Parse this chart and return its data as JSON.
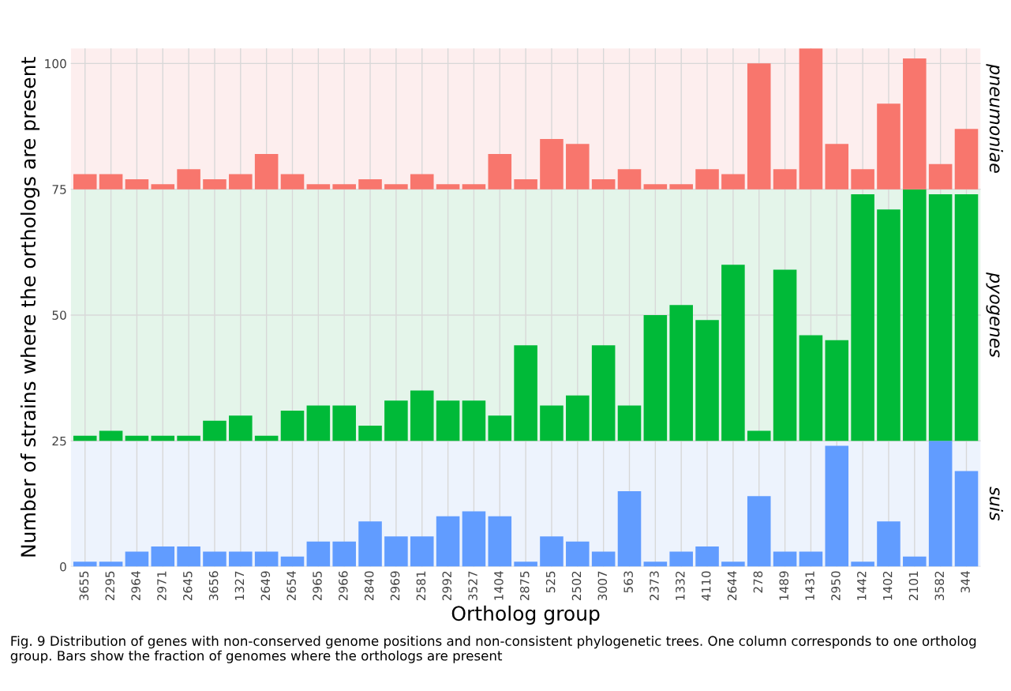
{
  "chart_data": {
    "type": "bar",
    "xlabel": "Ortholog group",
    "ylabel": "Number of strains where the orthologs are present",
    "categories": [
      "3655",
      "2295",
      "2964",
      "2971",
      "2645",
      "3656",
      "1327",
      "2649",
      "2654",
      "2965",
      "2966",
      "2840",
      "2969",
      "2581",
      "2992",
      "3527",
      "1404",
      "2875",
      "525",
      "2502",
      "3007",
      "563",
      "2373",
      "1332",
      "4110",
      "2644",
      "278",
      "1489",
      "1431",
      "2950",
      "1442",
      "1402",
      "2101",
      "3582",
      "344"
    ],
    "series": [
      {
        "color": "#619cff",
        "base": [
          0,
          0,
          0,
          0,
          0,
          0,
          0,
          0,
          0,
          0,
          0,
          0,
          0,
          0,
          0,
          0,
          0,
          0,
          0,
          0,
          0,
          0,
          0,
          0,
          0,
          0,
          0,
          0,
          0,
          0,
          0,
          0,
          0,
          0,
          0
        ],
        "values": [
          1,
          1,
          3,
          4,
          4,
          3,
          3,
          3,
          2,
          5,
          5,
          9,
          6,
          6,
          10,
          11,
          10,
          1,
          6,
          5,
          3,
          15,
          1,
          3,
          4,
          1,
          14,
          3,
          3,
          24,
          1,
          9,
          2,
          25,
          19
        ]
      },
      {
        "color": "#00ba38",
        "base": [
          25,
          25,
          25,
          25,
          25,
          25,
          25,
          25,
          25,
          25,
          25,
          25,
          25,
          25,
          25,
          25,
          25,
          25,
          25,
          25,
          25,
          25,
          25,
          25,
          25,
          25,
          25,
          25,
          25,
          25,
          25,
          25,
          25,
          25,
          25
        ],
        "values": [
          1,
          2,
          1,
          1,
          1,
          4,
          5,
          1,
          6,
          7,
          7,
          3,
          8,
          10,
          8,
          8,
          5,
          19,
          7,
          9,
          19,
          7,
          25,
          27,
          24,
          35,
          2,
          34,
          21,
          20,
          49,
          46,
          50,
          49,
          49
        ]
      },
      {
        "color": "#f8766d",
        "base": [
          75,
          75,
          75,
          75,
          75,
          75,
          75,
          75,
          75,
          75,
          75,
          75,
          75,
          75,
          75,
          75,
          75,
          75,
          75,
          75,
          75,
          75,
          75,
          75,
          75,
          75,
          75,
          75,
          75,
          75,
          75,
          75,
          75,
          75,
          75
        ],
        "values": [
          3,
          3,
          2,
          1,
          4,
          2,
          3,
          7,
          3,
          1,
          1,
          2,
          1,
          3,
          1,
          1,
          7,
          2,
          10,
          9,
          2,
          4,
          1,
          1,
          4,
          3,
          25,
          4,
          28,
          9,
          4,
          17,
          26,
          5,
          12
        ]
      }
    ],
    "bands": [
      {
        "axis": "y",
        "from": 0,
        "to": 25,
        "label": "suis",
        "color": "#edf3fd"
      },
      {
        "axis": "y",
        "from": 25,
        "to": 75,
        "label": "pyogenes",
        "color": "#e4f5ea"
      },
      {
        "axis": "y",
        "from": 75,
        "to": 103,
        "label": "pneumoniae",
        "color": "#fdeeee"
      }
    ],
    "ylim": [
      0,
      103
    ],
    "yticks": [
      0,
      25,
      50,
      75,
      100
    ],
    "grid": true,
    "annotations": [
      "Fig. 9 Distribution of genes with non-conserved genome positions and non-consistent phylogenetic trees. One column corresponds to one ortholog group. Bars show the fraction of genomes where the orthologs are present"
    ]
  }
}
